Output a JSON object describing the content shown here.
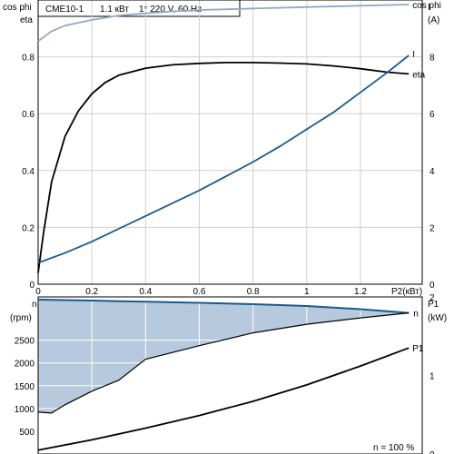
{
  "header": {
    "model": "CME10-1",
    "power": "1.1 кВт",
    "supply": "1* 220 V, 60 Hz"
  },
  "colors": {
    "frame": "#000000",
    "grid": "#cfcfcf",
    "cos_phi": "#8fa9c6",
    "eta": "#000000",
    "current": "#1c5a8a",
    "speed_line": "#1c5a8a",
    "speed_fill": "#b7c9dc",
    "p1": "#000000"
  },
  "chart_data": [
    {
      "type": "line",
      "title": "",
      "xlabel": "P2(кВт)",
      "ylabel_left": [
        "cos phi",
        "eta"
      ],
      "ylabel_right": [
        "I",
        "(A)"
      ],
      "xlim": [
        0,
        1.43
      ],
      "ylim_left": [
        0,
        1.0
      ],
      "ylim_right": [
        0,
        10
      ],
      "x_ticks": [
        "0",
        "0.2",
        "0.4",
        "0.6",
        "0.8",
        "1",
        "1.2"
      ],
      "y_ticks_left": [
        "0",
        "0.2",
        "0.4",
        "0.6",
        "0.8"
      ],
      "y_ticks_right": [
        "0",
        "2",
        "4",
        "6",
        "8"
      ],
      "grid": true,
      "series": [
        {
          "name": "cos phi",
          "axis": "left",
          "x": [
            0,
            0.05,
            0.1,
            0.2,
            0.3,
            0.4,
            0.5,
            0.6,
            0.8,
            1.0,
            1.2,
            1.38
          ],
          "y": [
            0.855,
            0.89,
            0.91,
            0.93,
            0.945,
            0.953,
            0.96,
            0.965,
            0.97,
            0.975,
            0.98,
            0.984
          ]
        },
        {
          "name": "eta",
          "axis": "left",
          "x": [
            0,
            0.02,
            0.05,
            0.1,
            0.15,
            0.2,
            0.25,
            0.3,
            0.4,
            0.5,
            0.6,
            0.7,
            0.8,
            0.9,
            1.0,
            1.1,
            1.2,
            1.3,
            1.38
          ],
          "y": [
            0.04,
            0.18,
            0.36,
            0.52,
            0.61,
            0.67,
            0.71,
            0.735,
            0.76,
            0.772,
            0.777,
            0.78,
            0.78,
            0.778,
            0.775,
            0.768,
            0.758,
            0.746,
            0.74
          ]
        },
        {
          "name": "I",
          "axis": "right",
          "x": [
            0,
            0.1,
            0.2,
            0.3,
            0.4,
            0.5,
            0.6,
            0.7,
            0.8,
            0.9,
            1.0,
            1.1,
            1.2,
            1.3,
            1.38
          ],
          "y": [
            0.75,
            1.1,
            1.5,
            1.95,
            2.4,
            2.85,
            3.3,
            3.8,
            4.3,
            4.85,
            5.45,
            6.05,
            6.75,
            7.45,
            8.05
          ]
        }
      ]
    },
    {
      "type": "area",
      "title": "",
      "ylabel_left": [
        "n",
        "(rpm)"
      ],
      "ylabel_right": [
        "P1",
        "(kW)"
      ],
      "xlim": [
        0,
        1.43
      ],
      "ylim_left": [
        0,
        3450
      ],
      "ylim_right": [
        0,
        2.0
      ],
      "y_ticks_left": [
        "500",
        "1000",
        "1500",
        "2000",
        "2500"
      ],
      "y_ticks_right": [
        "0",
        "1",
        "2"
      ],
      "grid": true,
      "annotation": "n = 100 %",
      "series": [
        {
          "name": "n",
          "axis": "left",
          "band_upper": {
            "x": [
              0,
              0.2,
              0.4,
              0.6,
              0.8,
              1.0,
              1.2,
              1.38
            ],
            "y": [
              3390,
              3370,
              3345,
              3320,
              3290,
              3250,
              3180,
              3100
            ]
          },
          "band_lower": {
            "x": [
              0,
              0.05,
              0.1,
              0.2,
              0.3,
              0.4,
              0.5,
              0.6,
              0.8,
              1.0,
              1.2,
              1.38
            ],
            "y": [
              920,
              900,
              1080,
              1380,
              1620,
              2080,
              2230,
              2380,
              2660,
              2850,
              2990,
              3100
            ]
          }
        },
        {
          "name": "P1",
          "axis": "right",
          "x": [
            0,
            0.2,
            0.4,
            0.6,
            0.8,
            1.0,
            1.2,
            1.38
          ],
          "y": [
            0.05,
            0.18,
            0.33,
            0.49,
            0.67,
            0.88,
            1.12,
            1.35
          ]
        }
      ]
    }
  ]
}
